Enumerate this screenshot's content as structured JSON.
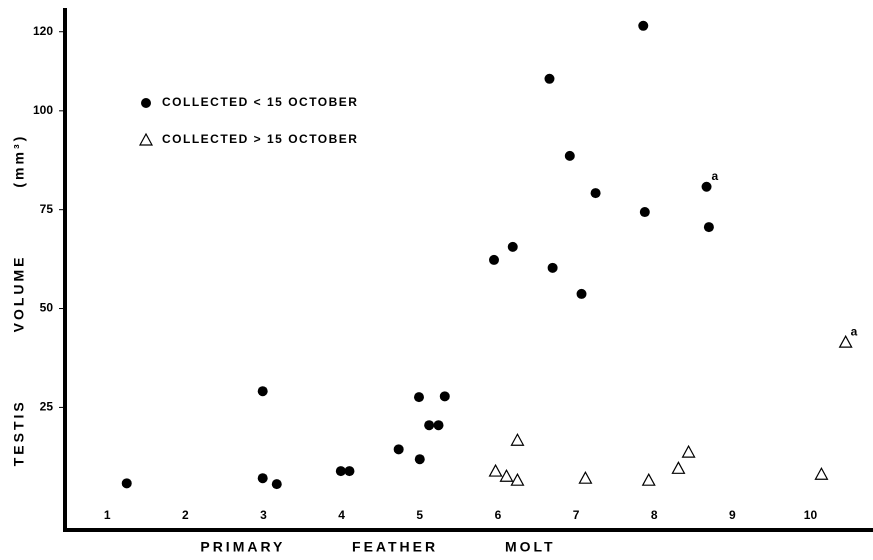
{
  "chart_data": {
    "type": "scatter",
    "xlabel": "PRIMARY FEATHER MOLT",
    "ylabel": "TESTIS VOLUME (mm³)",
    "xlim": [
      0.46,
      10.8
    ],
    "xticks": [
      1,
      2,
      3,
      4,
      5,
      6,
      7,
      8,
      9,
      10
    ],
    "ylim": [
      -6,
      126
    ],
    "yticks": [
      25,
      50,
      75,
      100,
      120
    ],
    "grid": false,
    "legend": "upper left",
    "series": [
      {
        "name": "COLLECTED < 15 OCTOBER",
        "color": "#000000",
        "marker": "circle",
        "x": [
          1.25,
          2.99,
          3.17,
          2.99,
          3.99,
          4.1,
          4.73,
          4.99,
          5.0,
          5.12,
          5.24,
          5.32,
          5.95,
          6.19,
          6.66,
          6.7,
          6.92,
          7.07,
          7.25,
          7.86,
          7.88,
          8.67,
          8.7
        ],
        "values": [
          5.8,
          7.1,
          5.6,
          29.1,
          8.9,
          8.9,
          14.4,
          27.6,
          11.9,
          20.5,
          20.5,
          27.8,
          62.3,
          65.6,
          108.1,
          60.3,
          88.6,
          53.7,
          79.2,
          121.5,
          74.4,
          80.8,
          70.6
        ],
        "point_labels": [
          null,
          null,
          null,
          null,
          null,
          null,
          null,
          null,
          null,
          null,
          null,
          null,
          null,
          null,
          null,
          null,
          null,
          null,
          null,
          null,
          null,
          "a",
          null
        ]
      },
      {
        "name": "COLLECTED > 15 OCTOBER",
        "color": "#000000",
        "marker": "triangle",
        "x": [
          5.97,
          6.11,
          6.25,
          6.25,
          7.12,
          7.93,
          8.31,
          8.44,
          10.14,
          10.45
        ],
        "values": [
          8.9,
          7.6,
          6.6,
          16.7,
          7.1,
          6.6,
          9.6,
          13.7,
          8.1,
          41.5
        ],
        "point_labels": [
          null,
          null,
          null,
          null,
          null,
          null,
          null,
          null,
          null,
          "a"
        ]
      }
    ]
  }
}
